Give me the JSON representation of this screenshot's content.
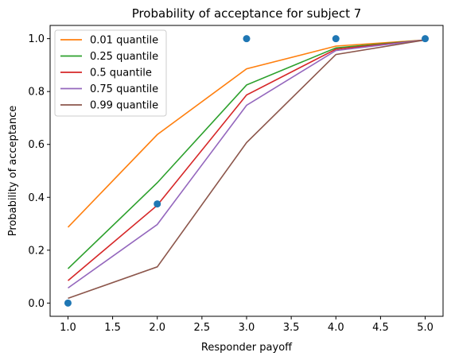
{
  "chart_data": {
    "type": "line",
    "title": "Probability of acceptance for subject 7",
    "xlabel": "Responder payoff",
    "ylabel": "Probability of acceptance",
    "xlim": [
      0.8,
      5.2
    ],
    "ylim": [
      -0.05,
      1.05
    ],
    "xticks": [
      1.0,
      1.5,
      2.0,
      2.5,
      3.0,
      3.5,
      4.0,
      4.5,
      5.0
    ],
    "xtick_labels": [
      "1.0",
      "1.5",
      "2.0",
      "2.5",
      "3.0",
      "3.5",
      "4.0",
      "4.5",
      "5.0"
    ],
    "yticks": [
      0.0,
      0.2,
      0.4,
      0.6,
      0.8,
      1.0
    ],
    "ytick_labels": [
      "0.0",
      "0.2",
      "0.4",
      "0.6",
      "0.8",
      "1.0"
    ],
    "grid": false,
    "legend_position": "top-left",
    "x": [
      1,
      2,
      3,
      4,
      5
    ],
    "series": [
      {
        "name": "0.01 quantile",
        "color": "#ff7f0e",
        "values": [
          0.287,
          0.637,
          0.886,
          0.972,
          0.995
        ]
      },
      {
        "name": "0.25 quantile",
        "color": "#2ca02c",
        "values": [
          0.13,
          0.455,
          0.825,
          0.965,
          0.995
        ]
      },
      {
        "name": "0.5 quantile",
        "color": "#d62728",
        "values": [
          0.085,
          0.37,
          0.787,
          0.96,
          0.995
        ]
      },
      {
        "name": "0.75 quantile",
        "color": "#9467bd",
        "values": [
          0.057,
          0.297,
          0.748,
          0.955,
          0.995
        ]
      },
      {
        "name": "0.99 quantile",
        "color": "#8c564b",
        "values": [
          0.018,
          0.137,
          0.607,
          0.94,
          0.995
        ]
      }
    ],
    "observed": {
      "color": "#1f77b4",
      "x": [
        1,
        2,
        3,
        4,
        5
      ],
      "values": [
        0.0,
        0.375,
        1.0,
        1.0,
        1.0
      ]
    }
  }
}
